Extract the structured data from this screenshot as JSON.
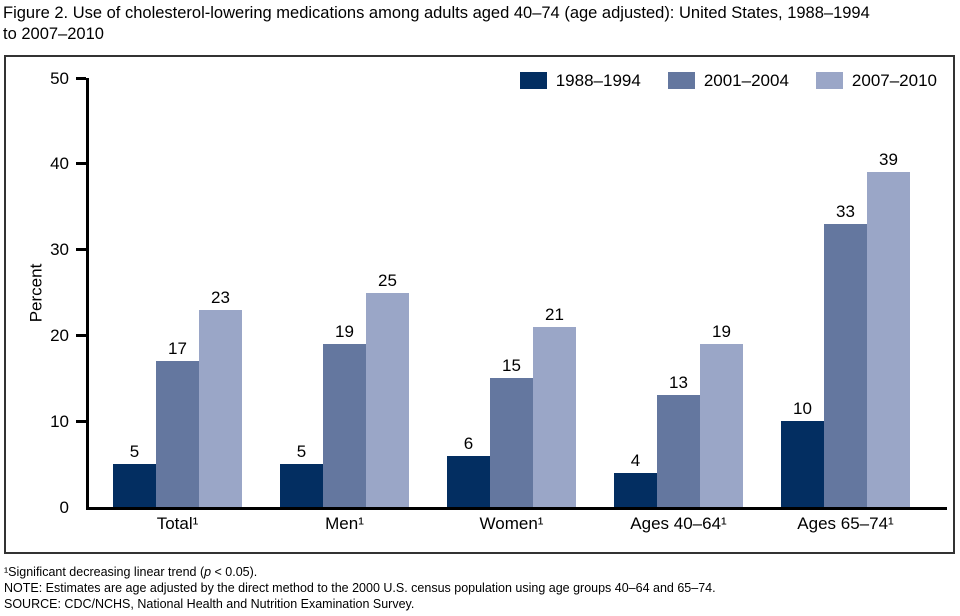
{
  "page": {
    "title": "Figure 2. Use of cholesterol-lowering medications among adults aged 40–74 (age adjusted): United States, 1988–1994\nto 2007–2010"
  },
  "footnotes": {
    "line1_prefix": "¹Significant decreasing linear trend (",
    "line1_italic": "p",
    "line1_suffix": " < 0.05).",
    "note": "NOTE: Estimates are age adjusted by the direct method to the 2000 U.S. census population using age groups 40–64 and 65–74.",
    "source": "SOURCE: CDC/NCHS, National Health and Nutrition Examination Survey."
  },
  "chart_data": {
    "type": "bar",
    "title": "Figure 2. Use of cholesterol-lowering medications among adults aged 40–74 (age adjusted): United States, 1988–1994 to 2007–2010",
    "xlabel": "",
    "ylabel": "Percent",
    "ylim": [
      0,
      50
    ],
    "yticks": [
      0,
      10,
      20,
      30,
      40,
      50
    ],
    "grid": false,
    "legend_position": "top-right",
    "categories": [
      "Total¹",
      "Men¹",
      "Women¹",
      "Ages 40–64¹",
      "Ages 65–74¹"
    ],
    "series": [
      {
        "name": "1988–1994",
        "color": "#032e61",
        "values": [
          5,
          5,
          6,
          4,
          10
        ]
      },
      {
        "name": "2001–2004",
        "color": "#64779f",
        "values": [
          17,
          19,
          15,
          13,
          33
        ]
      },
      {
        "name": "2007–2010",
        "color": "#9aa6c7",
        "values": [
          23,
          25,
          21,
          19,
          39
        ]
      }
    ],
    "bar_value_labels": true,
    "axis_color": "#000000",
    "frame_border_color": "#333333"
  }
}
